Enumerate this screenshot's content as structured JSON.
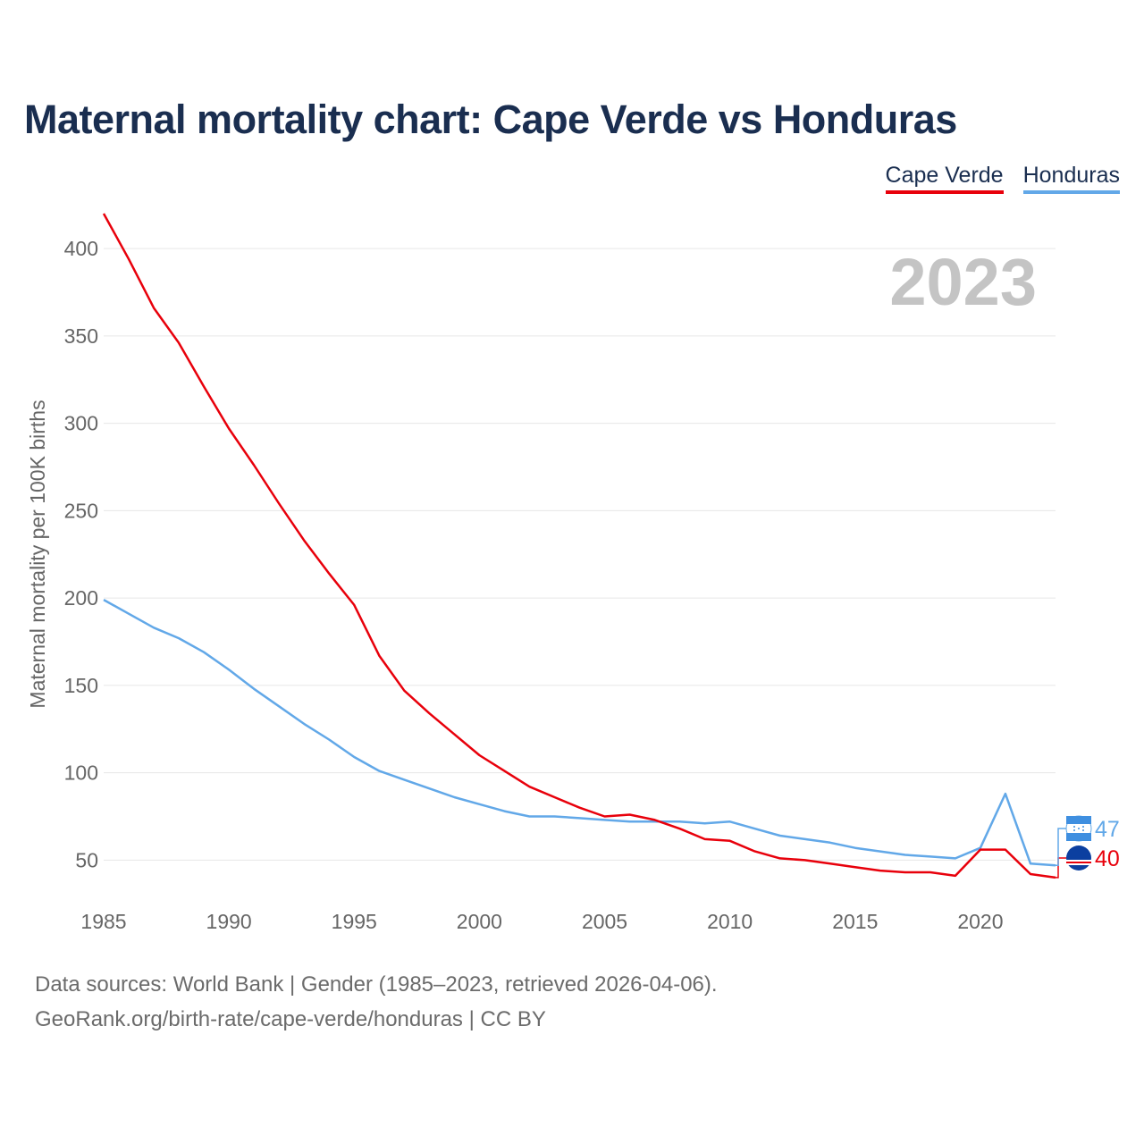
{
  "title": "Maternal mortality chart: Cape Verde vs Honduras",
  "legend": [
    {
      "name": "Cape Verde",
      "color": "#e8000b"
    },
    {
      "name": "Honduras",
      "color": "#62a8e8"
    }
  ],
  "year_label": "2023",
  "footer": {
    "source": "Data sources: World Bank | Gender (1985–2023, retrieved 2026-04-06).",
    "credit": "GeoRank.org/birth-rate/cape-verde/honduras | CC BY"
  },
  "chart_data": {
    "type": "line",
    "title": "Maternal mortality chart: Cape Verde vs Honduras",
    "xlabel": "",
    "ylabel": "Maternal mortality per 100K births",
    "xlim": [
      1985,
      2023
    ],
    "ylim": [
      20,
      420
    ],
    "x_ticks": [
      1985,
      1990,
      1995,
      2000,
      2005,
      2010,
      2015,
      2020
    ],
    "y_ticks": [
      50,
      100,
      150,
      200,
      250,
      300,
      350,
      400
    ],
    "grid": true,
    "legend_position": "top-right",
    "x": [
      1985,
      1986,
      1987,
      1988,
      1989,
      1990,
      1991,
      1992,
      1993,
      1994,
      1995,
      1996,
      1997,
      1998,
      1999,
      2000,
      2001,
      2002,
      2003,
      2004,
      2005,
      2006,
      2007,
      2008,
      2009,
      2010,
      2011,
      2012,
      2013,
      2014,
      2015,
      2016,
      2017,
      2018,
      2019,
      2020,
      2021,
      2022,
      2023
    ],
    "series": [
      {
        "name": "Cape Verde",
        "color": "#e8000b",
        "end_label": "40",
        "values": [
          420,
          394,
          366,
          346,
          321,
          297,
          276,
          254,
          233,
          214,
          196,
          167,
          147,
          134,
          122,
          110,
          101,
          92,
          86,
          80,
          75,
          76,
          73,
          68,
          62,
          61,
          55,
          51,
          50,
          48,
          46,
          44,
          43,
          43,
          41,
          56,
          56,
          42,
          40
        ]
      },
      {
        "name": "Honduras",
        "color": "#62a8e8",
        "end_label": "47",
        "values": [
          199,
          191,
          183,
          177,
          169,
          159,
          148,
          138,
          128,
          119,
          109,
          101,
          96,
          91,
          86,
          82,
          78,
          75,
          75,
          74,
          73,
          72,
          72,
          72,
          71,
          72,
          68,
          64,
          62,
          60,
          57,
          55,
          53,
          52,
          51,
          57,
          88,
          48,
          47
        ]
      }
    ]
  }
}
